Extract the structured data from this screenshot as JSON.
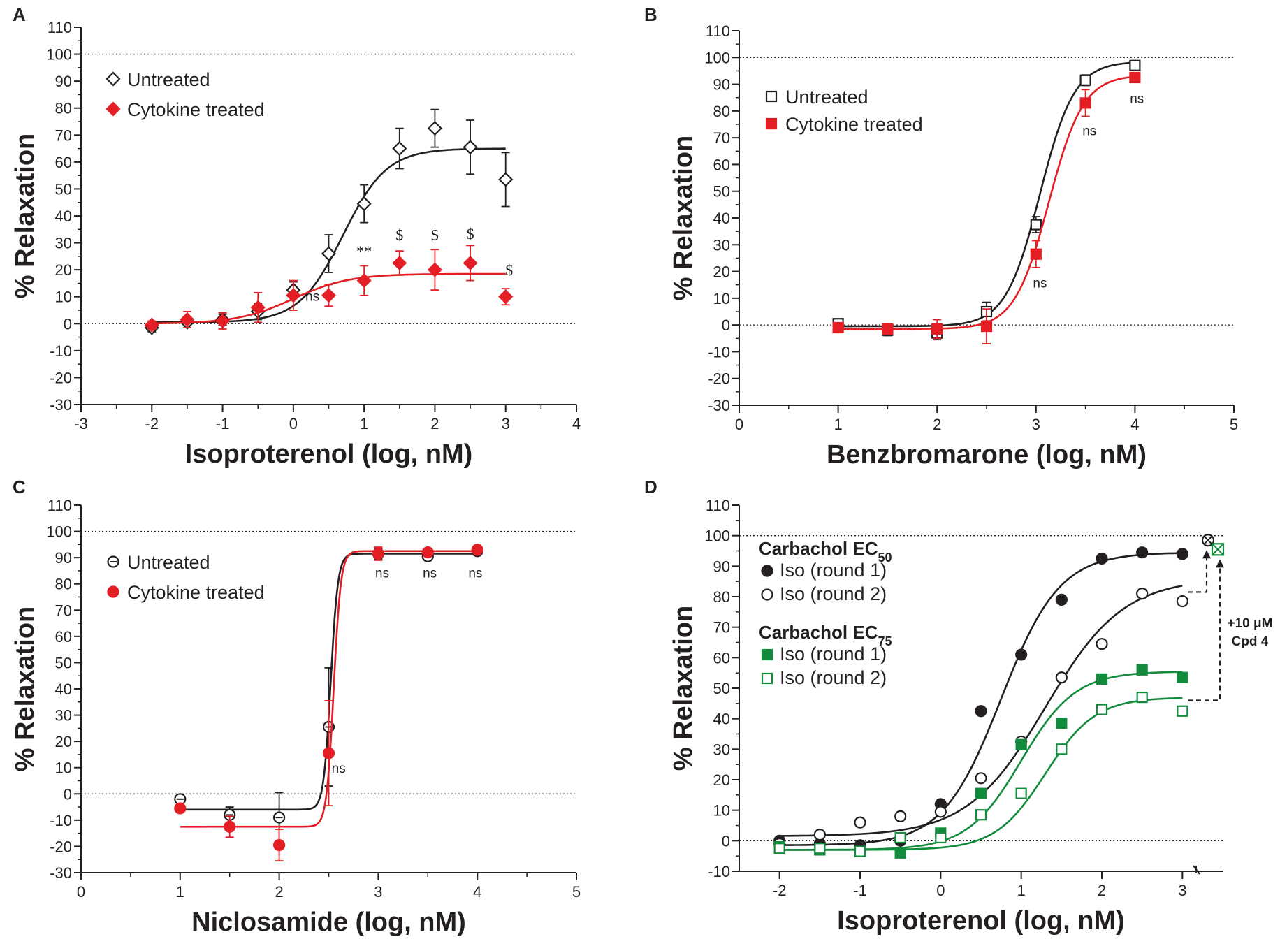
{
  "colors": {
    "black": "#231f20",
    "red": "#e31e24",
    "green": "#128b3d"
  },
  "chart_data": [
    {
      "panel": "A",
      "type": "scatter",
      "xlabel": "Isoproterenol (log, nM)",
      "ylabel": "% Relaxation",
      "xlim": [
        -3,
        4
      ],
      "ylim": [
        -30,
        110
      ],
      "xticks": [
        "-3",
        "-2",
        "-1",
        "0",
        "1",
        "2",
        "3",
        "4"
      ],
      "yticks": [
        "-30",
        "-20",
        "-10",
        "0",
        "10",
        "20",
        "30",
        "40",
        "50",
        "60",
        "70",
        "80",
        "90",
        "100",
        "110"
      ],
      "reference_lines": [
        0,
        100
      ],
      "legend": [
        "Untreated",
        "Cytokine treated"
      ],
      "series": [
        {
          "name": "Untreated",
          "marker": "diamond-open",
          "color": "#231f20",
          "x": [
            -2,
            -1.5,
            -1,
            -0.5,
            0,
            0.5,
            1,
            1.5,
            2,
            2.5,
            3
          ],
          "y": [
            -1.5,
            0.5,
            1.5,
            4.5,
            12.5,
            26,
            44.5,
            65,
            72.5,
            65.5,
            53.5
          ],
          "err": [
            1.5,
            2,
            2,
            3,
            3,
            7,
            7,
            7.5,
            7,
            10,
            10
          ],
          "fit": {
            "bottom": 0.5,
            "top": 65,
            "logEC50": 0.7,
            "hill": 1.4,
            "x0": -2,
            "x1": 3
          }
        },
        {
          "name": "Cytokine treated",
          "marker": "diamond-filled",
          "color": "#e31e24",
          "x": [
            -2,
            -1.5,
            -1,
            -0.5,
            0,
            0.5,
            1,
            1.5,
            2,
            2.5,
            3
          ],
          "y": [
            -0.5,
            1.5,
            1,
            6,
            10.5,
            10.5,
            16,
            22.5,
            20,
            22.5,
            10
          ],
          "err": [
            1.5,
            3,
            3,
            5.5,
            5.5,
            4,
            5.5,
            4.5,
            7.5,
            6.5,
            3
          ],
          "fit": {
            "bottom": 0,
            "top": 18.5,
            "logEC50": 0,
            "hill": 1.1,
            "x0": -2,
            "x1": 3
          }
        }
      ],
      "annotations": [
        {
          "text": "ns",
          "x": 0.27,
          "y": 8.5,
          "style": "sans"
        },
        {
          "text": "**",
          "x": 1.0,
          "y": 25,
          "style": "serif"
        },
        {
          "text": "$",
          "x": 1.5,
          "y": 31,
          "style": "serif"
        },
        {
          "text": "$",
          "x": 2.0,
          "y": 31,
          "style": "serif"
        },
        {
          "text": "$",
          "x": 2.5,
          "y": 31.5,
          "style": "serif"
        },
        {
          "text": "$",
          "x": 3.05,
          "y": 18,
          "style": "serif"
        }
      ]
    },
    {
      "panel": "B",
      "type": "scatter",
      "xlabel": "Benzbromarone (log, nM)",
      "ylabel": "% Relaxation",
      "xlim": [
        0,
        5
      ],
      "ylim": [
        -30,
        110
      ],
      "xticks": [
        "0",
        "1",
        "2",
        "3",
        "4",
        "5"
      ],
      "yticks": [
        "-30",
        "-20",
        "-10",
        "0",
        "10",
        "20",
        "30",
        "40",
        "50",
        "60",
        "70",
        "80",
        "90",
        "100",
        "110"
      ],
      "reference_lines": [
        0,
        100
      ],
      "legend": [
        "Untreated",
        "Cytokine treated"
      ],
      "series": [
        {
          "name": "Untreated",
          "marker": "square-open",
          "color": "#231f20",
          "x": [
            1,
            1.5,
            2,
            2.5,
            3,
            3.5,
            4
          ],
          "y": [
            0.5,
            -2,
            -3,
            5,
            37.5,
            91.5,
            97
          ],
          "err": [
            1,
            2,
            2.5,
            3.5,
            3,
            2,
            1
          ],
          "fit": {
            "bottom": -0.5,
            "top": 98.5,
            "logEC50": 3.04,
            "hill": 2.5,
            "x0": 1,
            "x1": 4
          }
        },
        {
          "name": "Cytokine treated",
          "marker": "square-filled",
          "color": "#e31e24",
          "x": [
            1,
            1.5,
            2,
            2.5,
            3,
            3.5,
            4
          ],
          "y": [
            -1,
            -1.5,
            -1.5,
            -0.5,
            26.5,
            83,
            92.5
          ],
          "err": [
            1,
            2,
            3.5,
            6.5,
            5,
            5,
            1.5
          ],
          "fit": {
            "bottom": -1.5,
            "top": 93.5,
            "logEC50": 3.13,
            "hill": 2.5,
            "x0": 1,
            "x1": 4
          }
        }
      ],
      "annotations": [
        {
          "text": "ns",
          "x": 3.04,
          "y": 14,
          "style": "sans"
        },
        {
          "text": "ns",
          "x": 3.54,
          "y": 71,
          "style": "sans"
        },
        {
          "text": "ns",
          "x": 4.02,
          "y": 83,
          "style": "sans"
        }
      ]
    },
    {
      "panel": "C",
      "type": "scatter",
      "xlabel": "Niclosamide (log, nM)",
      "ylabel": "% Relaxation",
      "xlim": [
        0,
        5
      ],
      "ylim": [
        -30,
        110
      ],
      "xticks": [
        "0",
        "1",
        "2",
        "3",
        "4",
        "5"
      ],
      "yticks": [
        "-30",
        "-20",
        "-10",
        "0",
        "10",
        "20",
        "30",
        "40",
        "50",
        "60",
        "70",
        "80",
        "90",
        "100",
        "110"
      ],
      "reference_lines": [
        0,
        100
      ],
      "legend": [
        "Untreated",
        "Cytokine treated"
      ],
      "series": [
        {
          "name": "Untreated",
          "marker": "circle-open-bar",
          "color": "#231f20",
          "x": [
            1,
            1.5,
            2,
            2.5,
            3,
            3.5,
            4
          ],
          "y": [
            -2,
            -8,
            -9,
            25.5,
            91.5,
            90.5,
            92.5
          ],
          "err": [
            1,
            3,
            9.5,
            22.5,
            2,
            1,
            1
          ],
          "fit": {
            "bottom": -6,
            "top": 91.5,
            "logEC50": 2.52,
            "hill": 12,
            "x0": 1,
            "x1": 4
          }
        },
        {
          "name": "Cytokine treated",
          "marker": "circle-filled",
          "color": "#e31e24",
          "x": [
            1,
            1.5,
            2,
            2.5,
            3,
            3.5,
            4
          ],
          "y": [
            -5.5,
            -12.5,
            -19.5,
            15.5,
            91.5,
            92,
            93
          ],
          "err": [
            1,
            4,
            6,
            20,
            2.5,
            1,
            1
          ],
          "fit": {
            "bottom": -12.5,
            "top": 92.5,
            "logEC50": 2.55,
            "hill": 12,
            "x0": 1,
            "x1": 4
          }
        }
      ],
      "annotations": [
        {
          "text": "ns",
          "x": 2.6,
          "y": 8,
          "style": "sans"
        },
        {
          "text": "ns",
          "x": 3.04,
          "y": 82.5,
          "style": "sans"
        },
        {
          "text": "ns",
          "x": 3.52,
          "y": 82.5,
          "style": "sans"
        },
        {
          "text": "ns",
          "x": 3.98,
          "y": 82.5,
          "style": "sans"
        }
      ]
    },
    {
      "panel": "D",
      "type": "scatter",
      "xlabel": "Isoproterenol (log, nM)",
      "ylabel": "% Relaxation",
      "xlim": [
        -2.5,
        3.5
      ],
      "ylim": [
        -10,
        110
      ],
      "xticks": [
        "-2",
        "-1",
        "0",
        "1",
        "2",
        "3"
      ],
      "yticks": [
        "-10",
        "0",
        "10",
        "20",
        "30",
        "40",
        "50",
        "60",
        "70",
        "80",
        "90",
        "100",
        "110"
      ],
      "reference_lines": [
        0,
        100
      ],
      "legend_groups": [
        {
          "title": "Carbachol EC",
          "subscript": "50",
          "entries": [
            "Iso (round 1)",
            "Iso (round 2)"
          ]
        },
        {
          "title": "Carbachol EC",
          "subscript": "75",
          "entries": [
            "Iso (round 1)",
            "Iso (round 2)"
          ]
        }
      ],
      "series": [
        {
          "name": "Carbachol EC50 Iso (round 1)",
          "marker": "circle-filled",
          "color": "#231f20",
          "x": [
            -2,
            -1.5,
            -1,
            -0.5,
            0,
            0.5,
            1,
            1.5,
            2,
            2.5,
            3
          ],
          "y": [
            0,
            -1,
            -1.5,
            0,
            12,
            42.5,
            61,
            79,
            92.5,
            94.5,
            94
          ],
          "fit": {
            "bottom": -1.5,
            "top": 94.5,
            "logEC50": 0.75,
            "hill": 1.2,
            "x0": -2,
            "x1": 3
          }
        },
        {
          "name": "Carbachol EC50 Iso (round 2)",
          "marker": "circle-open",
          "color": "#231f20",
          "x": [
            -2,
            -1.5,
            -1,
            -0.5,
            0,
            0.5,
            1,
            1.5,
            2,
            2.5,
            3
          ],
          "y": [
            -1,
            2,
            6,
            8,
            9.5,
            20.5,
            32.5,
            53.5,
            64.5,
            81,
            78.5
          ],
          "fit": {
            "bottom": 1.5,
            "top": 86,
            "logEC50": 1.3,
            "hill": 0.9,
            "x0": -2,
            "x1": 3
          }
        },
        {
          "name": "Carbachol EC75 Iso (round 1)",
          "marker": "square-filled",
          "color": "#128b3d",
          "x": [
            -2,
            -1.5,
            -1,
            -0.5,
            0,
            0.5,
            1,
            1.5,
            2,
            2.5,
            3
          ],
          "y": [
            -2,
            -3,
            -3.5,
            -4,
            2.5,
            15.5,
            31.5,
            38.5,
            53,
            56,
            53.5
          ],
          "fit": {
            "bottom": -3,
            "top": 55.5,
            "logEC50": 1.0,
            "hill": 1.3,
            "x0": -2,
            "x1": 3
          }
        },
        {
          "name": "Carbachol EC75 Iso (round 2)",
          "marker": "square-open",
          "color": "#128b3d",
          "x": [
            -2,
            -1.5,
            -1,
            -0.5,
            0,
            0.5,
            1,
            1.5,
            2,
            2.5,
            3
          ],
          "y": [
            -2.5,
            -2.5,
            -3.5,
            1,
            1,
            8.5,
            15.5,
            30,
            43,
            47,
            42.5
          ],
          "fit": {
            "bottom": -3,
            "top": 47,
            "logEC50": 1.3,
            "hill": 1.4,
            "x0": -2,
            "x1": 3
          }
        }
      ],
      "after_treatment": {
        "label_line1": "+10 μM",
        "label_line2": "Cpd 4",
        "points": [
          {
            "name": "Carbachol EC50 +Cpd 4",
            "y": 98.5,
            "color": "#231f20",
            "marker": "circle-x"
          },
          {
            "name": "Carbachol EC75 +Cpd 4",
            "y": 95.5,
            "color": "#128b3d",
            "marker": "square-x"
          }
        ]
      }
    }
  ],
  "panel_labels": [
    "A",
    "B",
    "C",
    "D"
  ]
}
